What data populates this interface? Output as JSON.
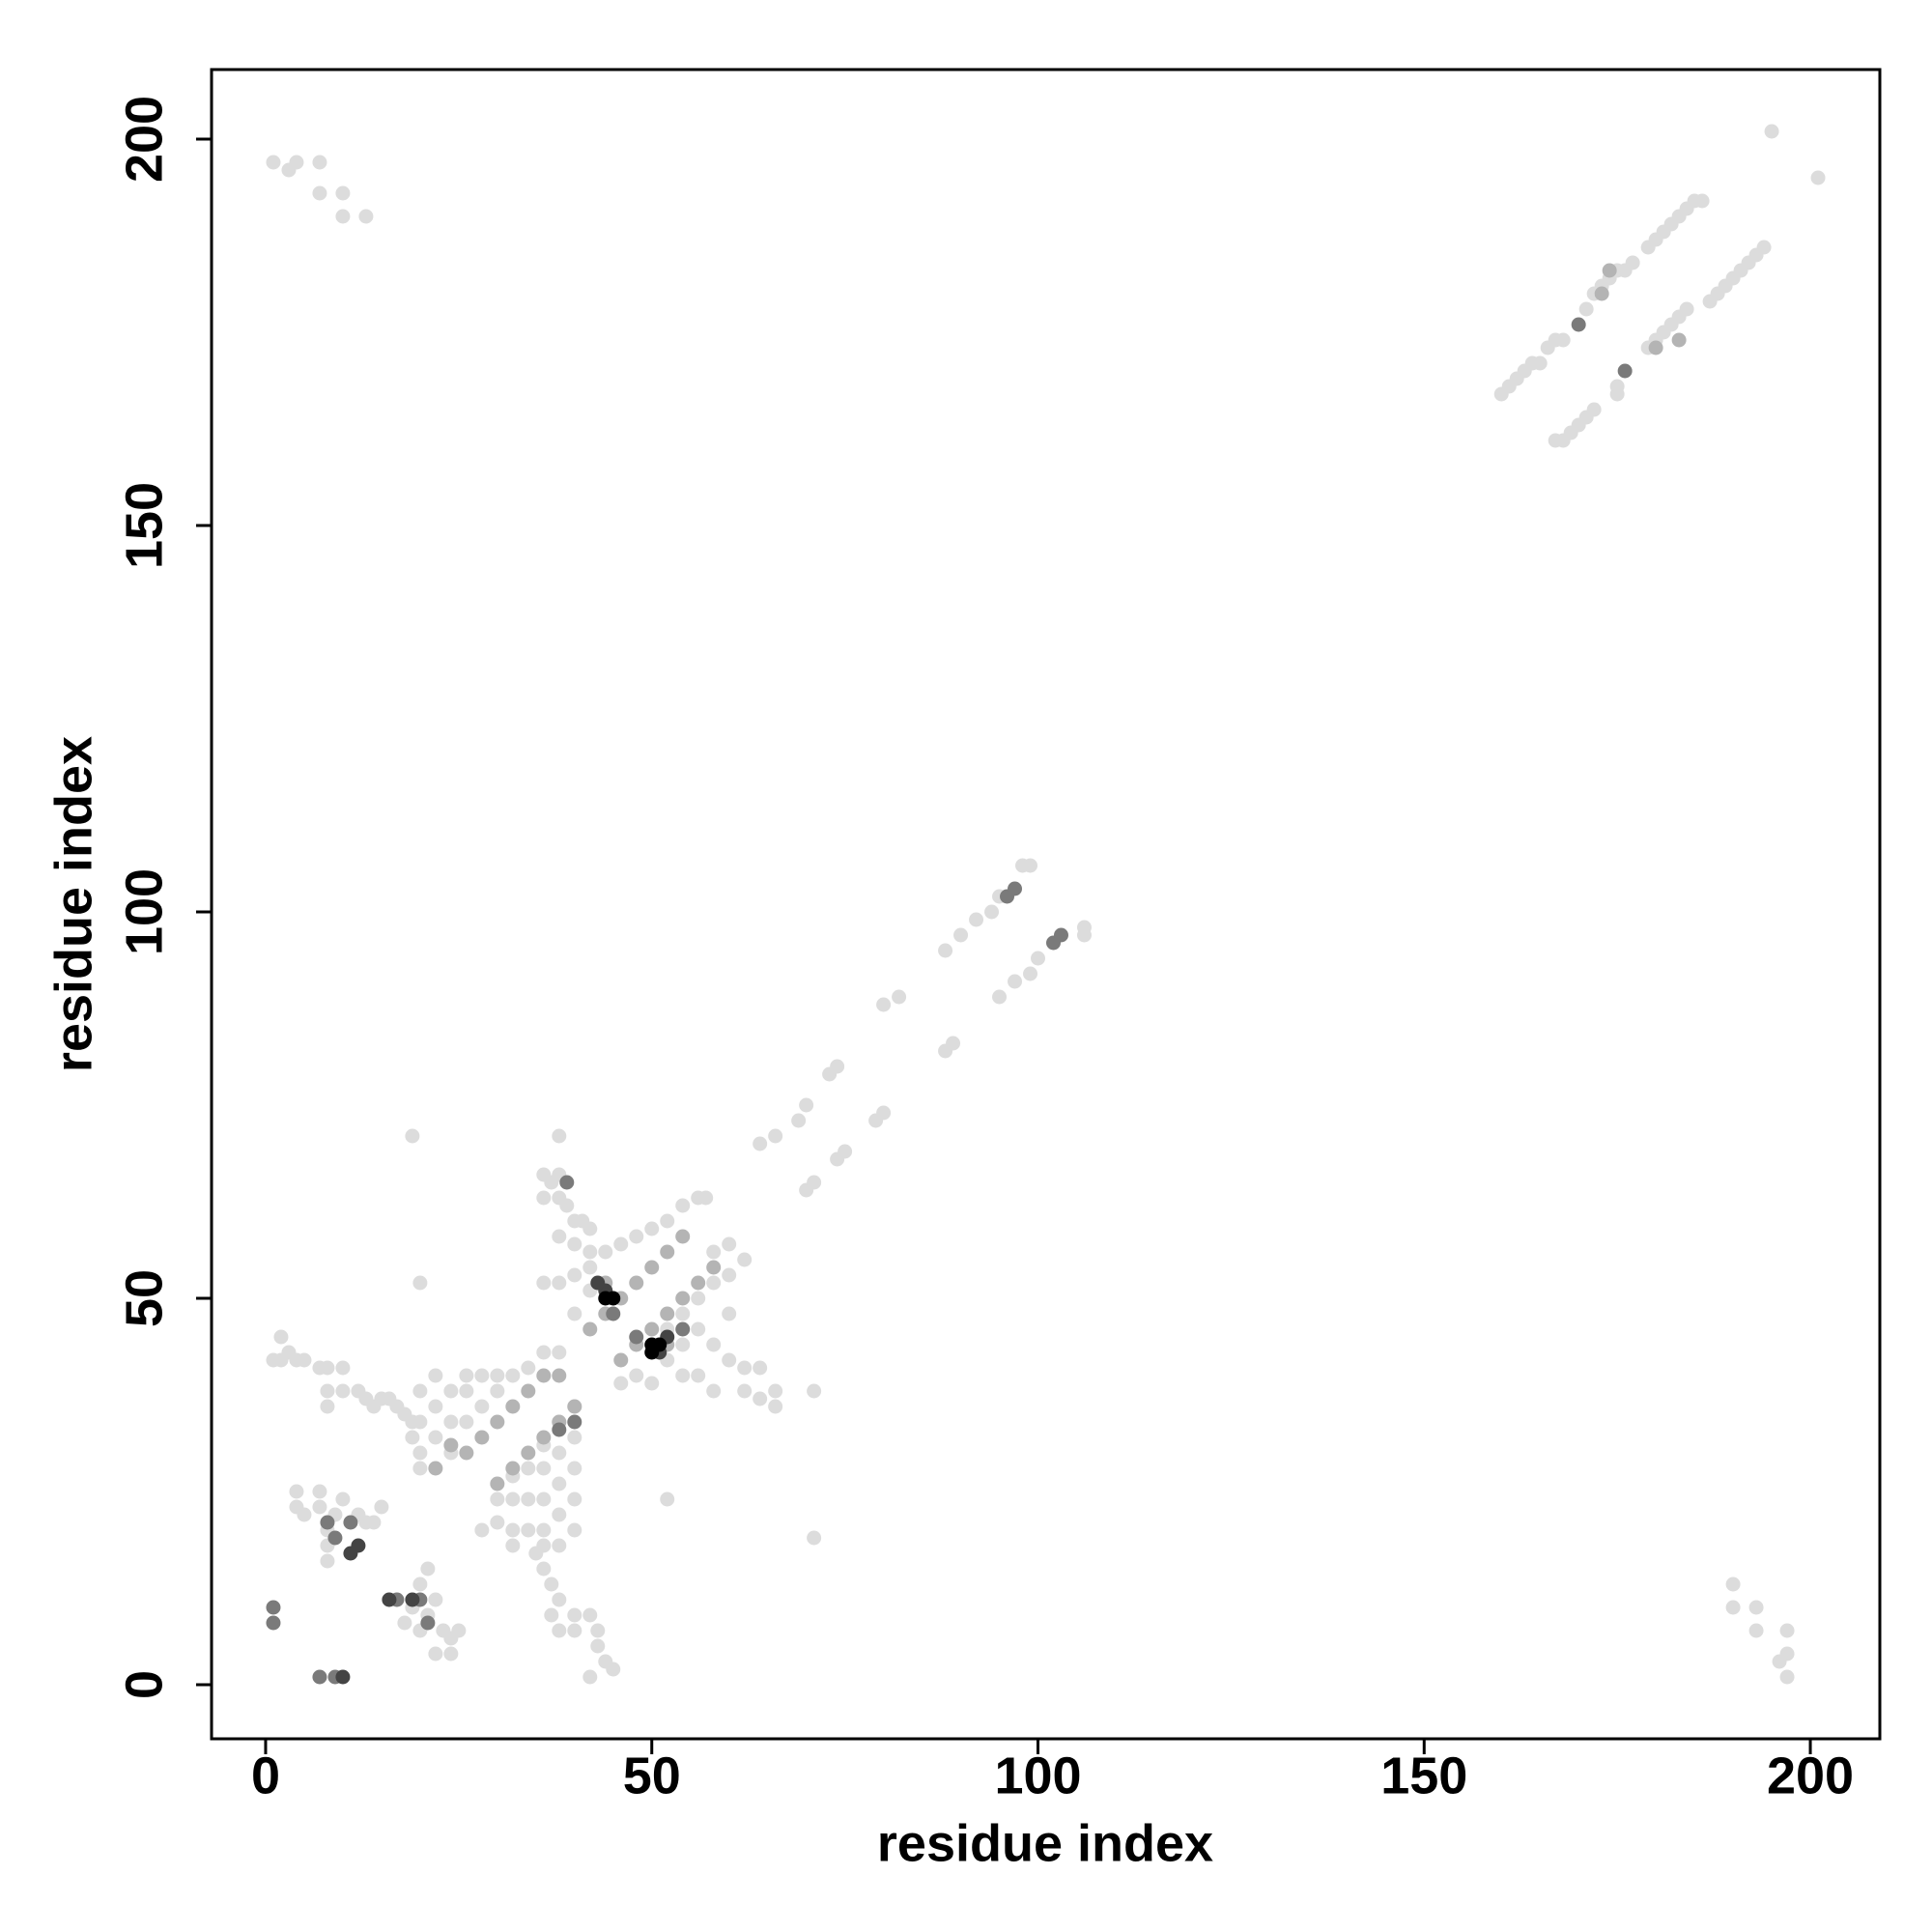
{
  "chart_data": {
    "type": "scatter",
    "x_label": "residue index",
    "y_label": "residue index",
    "xlim": [
      -7,
      209
    ],
    "ylim": [
      -7,
      209
    ],
    "xticks": [
      0,
      50,
      100,
      150,
      200
    ],
    "yticks": [
      0,
      50,
      100,
      150,
      200
    ],
    "series": [
      {
        "color": "#dcdcdc",
        "x": [
          1,
          3,
          4,
          7,
          7,
          10,
          10,
          13,
          160,
          161,
          162,
          163,
          164,
          165,
          166,
          167,
          168,
          171,
          172,
          173,
          174,
          175,
          176,
          177,
          179,
          180,
          181,
          182,
          183,
          184,
          185,
          186,
          167,
          168,
          169,
          170,
          171,
          172,
          175,
          175,
          179,
          180,
          181,
          182,
          183,
          184,
          187,
          188,
          189,
          190,
          191,
          192,
          193,
          194,
          195,
          201,
          190,
          190,
          193,
          193,
          197,
          197,
          196,
          197,
          64,
          66,
          69,
          70,
          73,
          74,
          80,
          82,
          88,
          90,
          92,
          94,
          95,
          98,
          99,
          70,
          71,
          74,
          75,
          79,
          80,
          88,
          89,
          95,
          97,
          99,
          100,
          106,
          106,
          1,
          2,
          2,
          3,
          4,
          5,
          7,
          8,
          8,
          8,
          10,
          10,
          12,
          13,
          14,
          15,
          16,
          17,
          18,
          19,
          19,
          20,
          20,
          4,
          4,
          5,
          7,
          7,
          8,
          8,
          8,
          9,
          10,
          12,
          13,
          14,
          15,
          19,
          20,
          38,
          52,
          71,
          71,
          20,
          20,
          22,
          22,
          22,
          24,
          24,
          24,
          26,
          26,
          26,
          28,
          28,
          30,
          30,
          32,
          34,
          36,
          38,
          28,
          30,
          30,
          32,
          32,
          32,
          34,
          34,
          34,
          36,
          36,
          36,
          36,
          38,
          38,
          38,
          38,
          40,
          40,
          40,
          40,
          32,
          36,
          38,
          40,
          35,
          36,
          37,
          38,
          37,
          38,
          40,
          42,
          43,
          43,
          44,
          42,
          45,
          40,
          18,
          20,
          21,
          22,
          23,
          24,
          25,
          24,
          22,
          19,
          20,
          21,
          36,
          37,
          38,
          36,
          38,
          39,
          40,
          41,
          42,
          38,
          40,
          42,
          44,
          36,
          38,
          40,
          42,
          46,
          48,
          50,
          52,
          54,
          56,
          57,
          40,
          42,
          58,
          60,
          62,
          60,
          58,
          56,
          54,
          52,
          56,
          58,
          60,
          62,
          64,
          62,
          64,
          66,
          66,
          56,
          58,
          54,
          50,
          48,
          46,
          52,
          54,
          60
        ],
        "y": [
          197,
          196,
          197,
          197,
          193,
          193,
          190,
          190,
          167,
          168,
          169,
          170,
          171,
          171,
          173,
          174,
          174,
          178,
          180,
          181,
          182,
          183,
          183,
          184,
          186,
          187,
          188,
          189,
          190,
          191,
          192,
          192,
          161,
          161,
          162,
          163,
          164,
          165,
          167,
          168,
          173,
          174,
          175,
          176,
          177,
          178,
          179,
          180,
          181,
          182,
          183,
          184,
          185,
          186,
          201,
          195,
          13,
          10,
          10,
          7,
          7,
          4,
          3,
          1,
          70,
          71,
          73,
          75,
          79,
          80,
          88,
          89,
          95,
          97,
          99,
          100,
          102,
          106,
          106,
          64,
          65,
          68,
          69,
          73,
          74,
          82,
          83,
          89,
          91,
          92,
          94,
          97,
          98,
          42,
          45,
          42,
          43,
          42,
          42,
          41,
          41,
          38,
          36,
          41,
          38,
          38,
          37,
          36,
          37,
          37,
          36,
          35,
          34,
          32,
          30,
          28,
          25,
          23,
          22,
          25,
          23,
          20,
          18,
          16,
          22,
          24,
          22,
          21,
          21,
          23,
          71,
          52,
          71,
          24,
          38,
          19,
          34,
          38,
          32,
          36,
          40,
          30,
          34,
          38,
          34,
          38,
          40,
          36,
          40,
          38,
          40,
          40,
          41,
          43,
          43,
          20,
          21,
          24,
          20,
          24,
          27,
          20,
          24,
          28,
          20,
          24,
          28,
          31,
          22,
          26,
          30,
          34,
          24,
          28,
          32,
          36,
          18,
          18,
          18,
          20,
          17,
          15,
          13,
          11,
          9,
          7,
          9,
          9,
          7,
          5,
          3,
          1,
          2,
          7,
          8,
          7,
          9,
          11,
          7,
          6,
          7,
          4,
          4,
          10,
          13,
          15,
          66,
          65,
          66,
          63,
          63,
          62,
          60,
          60,
          59,
          58,
          57,
          56,
          56,
          52,
          52,
          53,
          54,
          57,
          58,
          59,
          60,
          62,
          63,
          63,
          48,
          51,
          56,
          57,
          55,
          53,
          52,
          50,
          48,
          46,
          46,
          44,
          42,
          41,
          41,
          38,
          37,
          38,
          36,
          40,
          38,
          40,
          39,
          40,
          39,
          42,
          44,
          48
        ]
      },
      {
        "color": "#b4b4b4",
        "x": [
          173,
          180,
          183,
          174,
          26,
          28,
          30,
          32,
          34,
          36,
          30,
          32,
          34,
          36,
          38,
          40,
          22,
          24,
          38,
          42,
          46,
          44,
          52,
          44,
          46,
          48,
          50,
          52,
          54,
          48,
          50,
          52,
          54,
          56,
          58
        ],
        "y": [
          180,
          173,
          174,
          183,
          30,
          32,
          34,
          36,
          38,
          40,
          26,
          28,
          30,
          32,
          34,
          36,
          28,
          31,
          40,
          46,
          42,
          52,
          44,
          48,
          50,
          52,
          54,
          56,
          58,
          44,
          46,
          48,
          50,
          52,
          54
        ]
      },
      {
        "color": "#7a7a7a",
        "x": [
          170,
          176,
          96,
          102,
          97,
          103,
          1,
          1,
          9,
          11,
          8,
          39,
          45,
          48,
          20,
          21,
          17,
          9,
          7,
          40,
          38,
          54
        ],
        "y": [
          176,
          170,
          102,
          96,
          103,
          97,
          10,
          8,
          19,
          21,
          21,
          65,
          48,
          45,
          11,
          8,
          11,
          1,
          1,
          34,
          33,
          46
        ]
      },
      {
        "color": "#444444",
        "x": [
          11,
          12,
          16,
          19,
          10,
          44,
          43,
          51,
          52
        ],
        "y": [
          17,
          18,
          11,
          11,
          1,
          51,
          52,
          43,
          45
        ]
      },
      {
        "color": "#000000",
        "x": [
          44,
          45,
          50,
          51,
          50
        ],
        "y": [
          50,
          50,
          44,
          44,
          43
        ]
      }
    ]
  }
}
